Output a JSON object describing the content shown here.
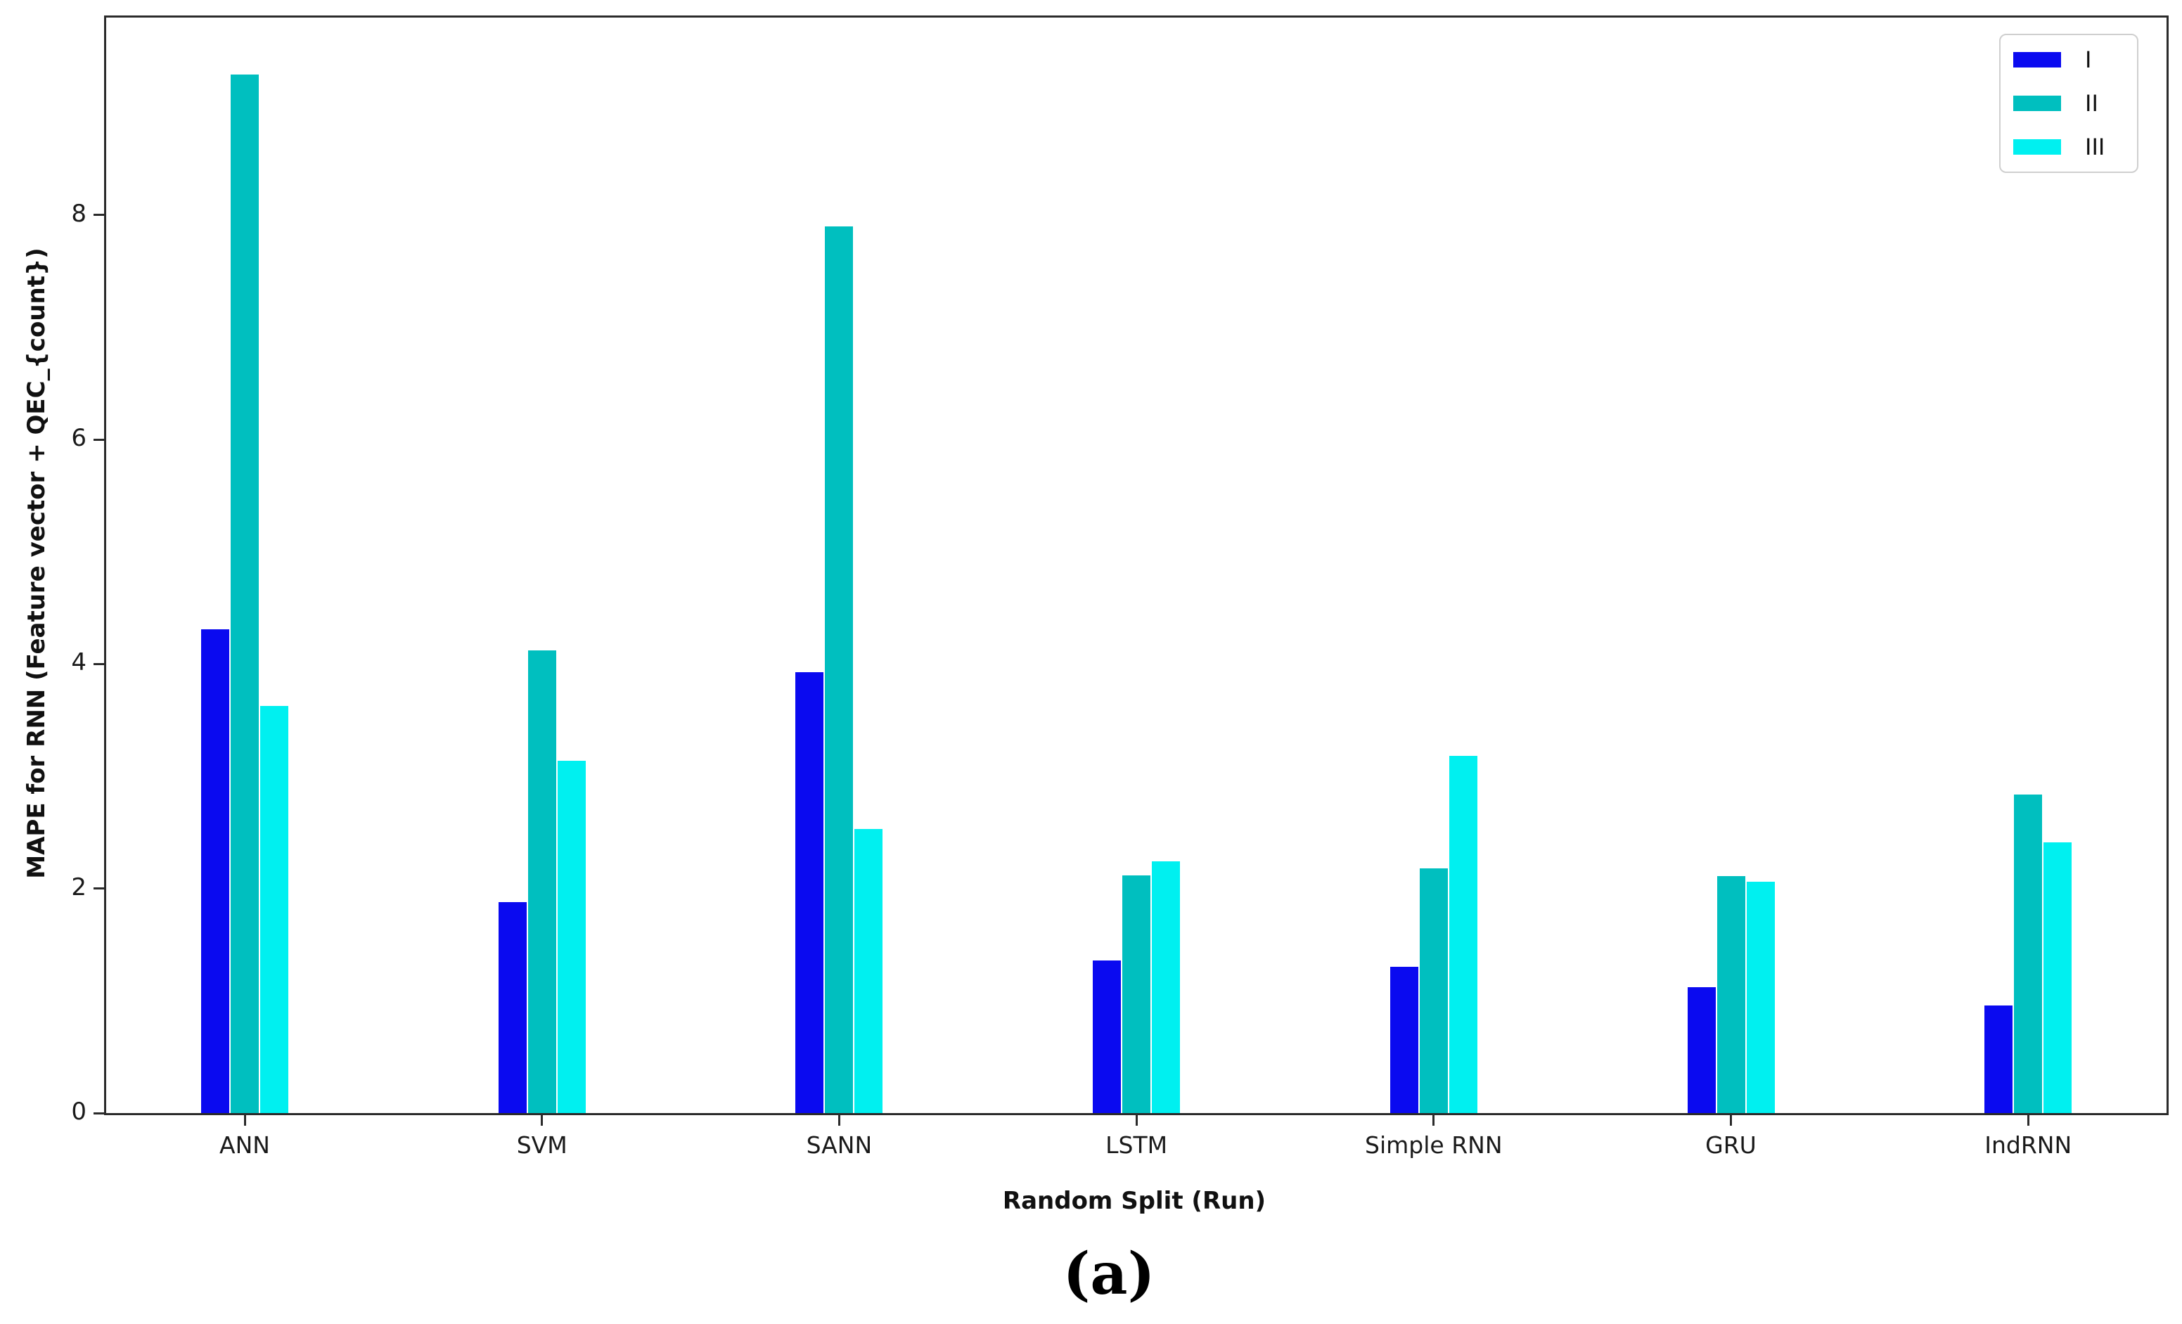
{
  "figure": {
    "caption": "(a)",
    "frame_color": "#2b2b2b",
    "background_color": "#ffffff",
    "legend_border_color": "#cfcfcf"
  },
  "chart_data": {
    "type": "bar",
    "title": "",
    "xlabel": "Random Split (Run)",
    "ylabel": "MAPE for RNN (Feature vector + QEC_{count})",
    "categories": [
      "ANN",
      "SVM",
      "SANN",
      "LSTM",
      "Simple RNN",
      "GRU",
      "IndRNN"
    ],
    "series": [
      {
        "name": "I",
        "color": "#0a0af0",
        "values": [
          4.31,
          1.88,
          3.93,
          1.36,
          1.3,
          1.12,
          0.96
        ]
      },
      {
        "name": "II",
        "color": "#00bfbf",
        "values": [
          9.25,
          4.12,
          7.9,
          2.12,
          2.18,
          2.11,
          2.84
        ]
      },
      {
        "name": "III",
        "color": "#00f0f0",
        "values": [
          3.63,
          3.14,
          2.53,
          2.24,
          3.18,
          2.06,
          2.41
        ]
      }
    ],
    "ylim": [
      0,
      9.76
    ],
    "yticks": [
      0,
      2,
      4,
      6,
      8
    ],
    "grid": false,
    "legend_position": "upper right"
  }
}
